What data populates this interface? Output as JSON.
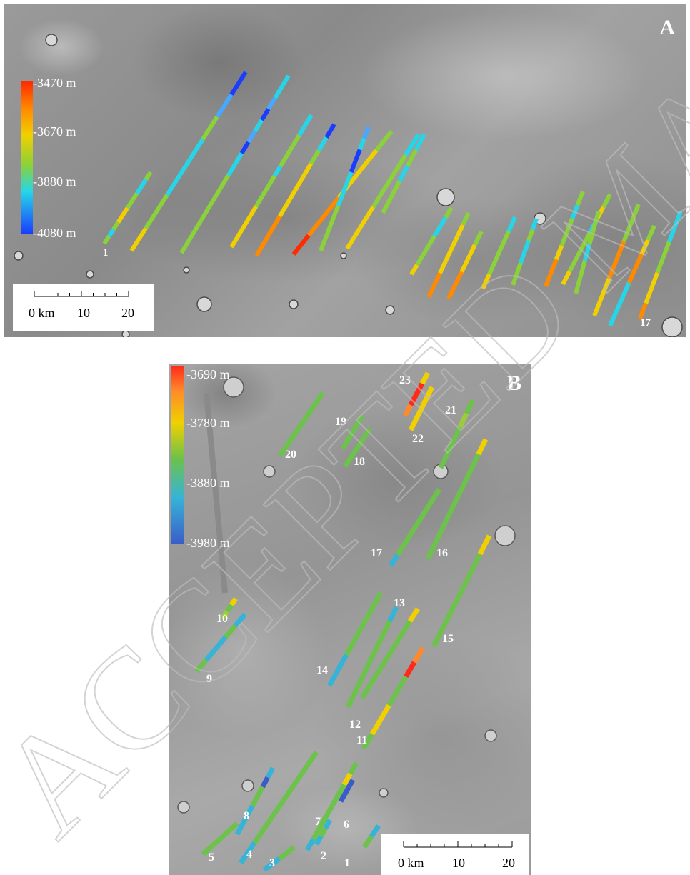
{
  "panel_a": {
    "letter": "A",
    "colorbar": {
      "labels": [
        "-3470 m",
        "-3670 m",
        "-3880 m",
        "-4080 m"
      ],
      "colors": [
        "#ff2a00",
        "#f0d000",
        "#8ad13a",
        "#26d6e8",
        "#1a3cff"
      ]
    },
    "scale_bar": {
      "zero": "0 km",
      "mid": "10",
      "end": "20"
    },
    "track_labels": [
      "1",
      "17"
    ]
  },
  "panel_b": {
    "letter": "B",
    "colorbar": {
      "labels": [
        "-3690 m",
        "-3780 m",
        "-3880 m",
        "-3980 m"
      ],
      "colors": [
        "#ff2a1a",
        "#f0d000",
        "#6cc24a",
        "#36b4d8",
        "#3a5cc8"
      ]
    },
    "scale_bar": {
      "zero": "0 km",
      "mid": "10",
      "end": "20"
    },
    "track_labels": [
      "1",
      "2",
      "3",
      "4",
      "5",
      "6",
      "7",
      "8",
      "9",
      "10",
      "11",
      "12",
      "13",
      "14",
      "15",
      "16",
      "17",
      "18",
      "19",
      "20",
      "21",
      "22",
      "23"
    ]
  },
  "watermark_text": "ACCEPTED MANUSCRIPT"
}
